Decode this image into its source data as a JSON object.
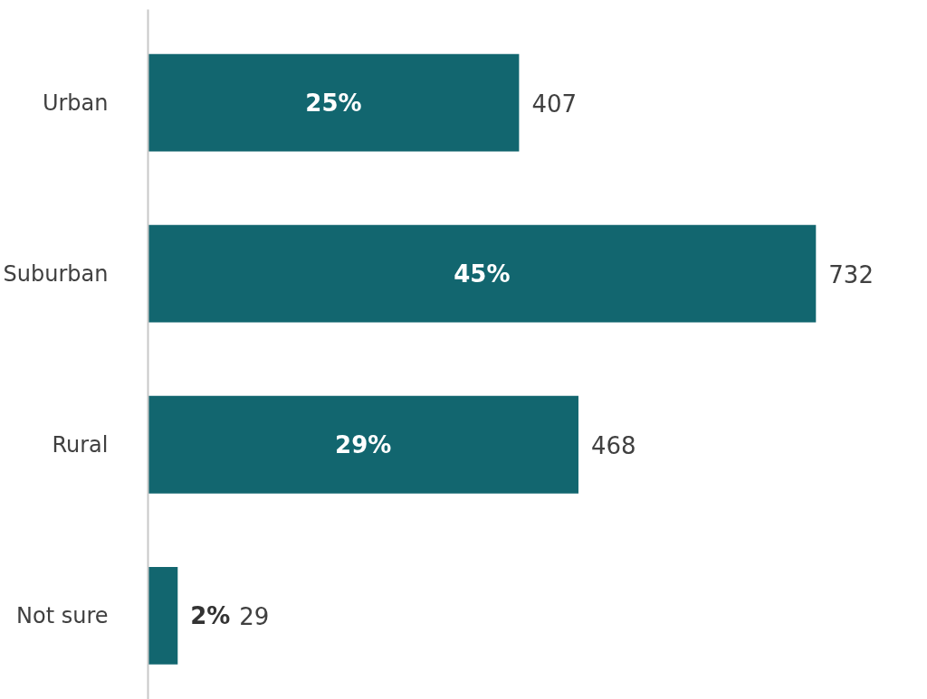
{
  "chart_data": {
    "type": "bar",
    "orientation": "horizontal",
    "categories": [
      "Urban",
      "Suburban",
      "Rural",
      "Not sure"
    ],
    "values": [
      25,
      45,
      29,
      2
    ],
    "color": "#12666f",
    "value_labels": [
      "25%",
      "45%",
      "29%",
      "2%"
    ],
    "annotations": [
      {
        "text": "407",
        "x": 25,
        "y": "Urban"
      },
      {
        "text": "732",
        "x": 45,
        "y": "Suburban"
      },
      {
        "text": "468",
        "x": 29,
        "y": "Rural"
      },
      {
        "text": "29",
        "x": 2,
        "y": "Not sure"
      }
    ]
  }
}
